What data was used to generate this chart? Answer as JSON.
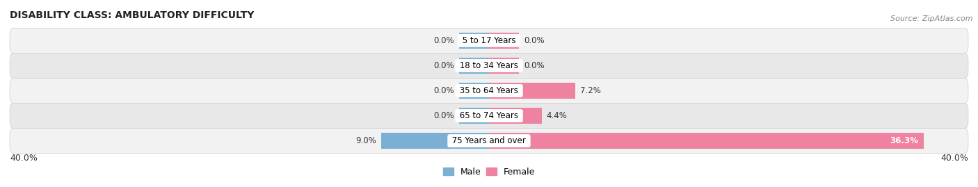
{
  "title": "DISABILITY CLASS: AMBULATORY DIFFICULTY",
  "source": "Source: ZipAtlas.com",
  "categories": [
    "5 to 17 Years",
    "18 to 34 Years",
    "35 to 64 Years",
    "65 to 74 Years",
    "75 Years and over"
  ],
  "male_values": [
    0.0,
    0.0,
    0.0,
    0.0,
    9.0
  ],
  "female_values": [
    0.0,
    0.0,
    7.2,
    4.4,
    36.3
  ],
  "male_color": "#7bafd4",
  "female_color": "#ee82a0",
  "row_colors": [
    "#f2f2f2",
    "#e8e8e8"
  ],
  "x_max": 40.0,
  "title_fontsize": 10,
  "source_fontsize": 8,
  "label_fontsize": 8.5,
  "cat_fontsize": 8.5,
  "bar_height": 0.62,
  "min_bar_display": 2.5
}
